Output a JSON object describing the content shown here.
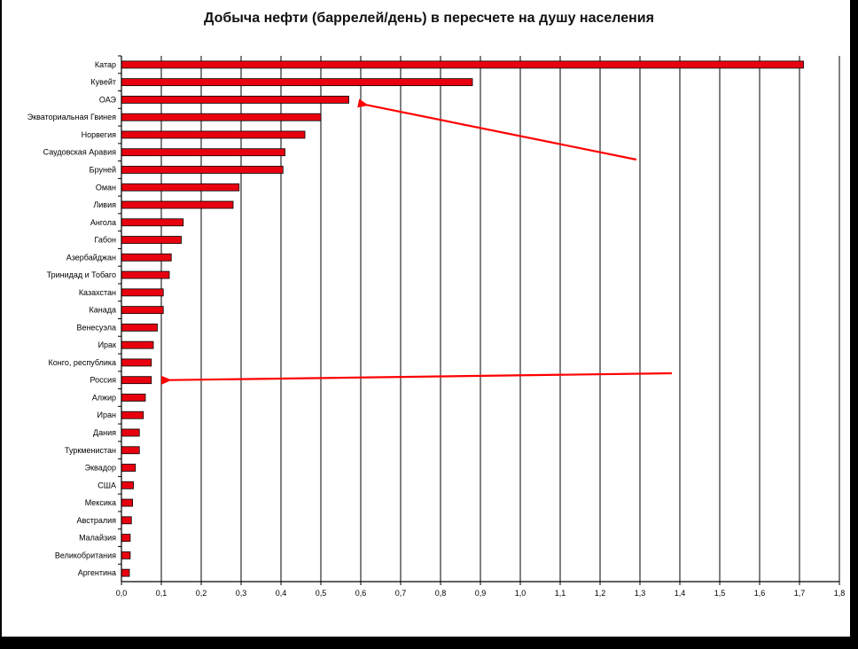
{
  "chart_data": {
    "type": "bar",
    "orientation": "horizontal",
    "title": "Добыча нефти (баррелей/день) в пересчете на душу населения",
    "xlim": [
      0,
      1.8
    ],
    "grid": true,
    "categories": [
      "Катар",
      "Кувейт",
      "ОАЭ",
      "Экваториальная Гвинея",
      "Норвегия",
      "Саудовская Аравия",
      "Бруней",
      "Оман",
      "Ливия",
      "Ангола",
      "Габон",
      "Азербайджан",
      "Тринидад и Тобаго",
      "Казахстан",
      "Канада",
      "Венесуэла",
      "Ирак",
      "Конго, республика",
      "Россия",
      "Алжир",
      "Иран",
      "Дания",
      "Туркменистан",
      "Эквадор",
      "США",
      "Мексика",
      "Австралия",
      "Малайзия",
      "Великобритания",
      "Аргентина"
    ],
    "values": [
      1.71,
      0.88,
      0.57,
      0.5,
      0.46,
      0.41,
      0.405,
      0.295,
      0.28,
      0.155,
      0.15,
      0.125,
      0.12,
      0.105,
      0.105,
      0.09,
      0.08,
      0.075,
      0.075,
      0.06,
      0.055,
      0.045,
      0.045,
      0.035,
      0.03,
      0.028,
      0.025,
      0.022,
      0.022,
      0.02
    ],
    "tick_labels": [
      "0,0",
      "0,1",
      "0,2",
      "0,3",
      "0,4",
      "0,5",
      "0,6",
      "0,7",
      "0,8",
      "0,9",
      "1,0",
      "1,1",
      "1,2",
      "1,3",
      "1,4",
      "1,5",
      "1,6",
      "1,7",
      "1,8"
    ],
    "tick_values": [
      0,
      0.1,
      0.2,
      0.3,
      0.4,
      0.5,
      0.6,
      0.7,
      0.8,
      0.9,
      1.0,
      1.1,
      1.2,
      1.3,
      1.4,
      1.5,
      1.6,
      1.7,
      1.8
    ],
    "bar_color": "#e8000f",
    "annotations": [
      {
        "type": "arrow",
        "points_to": "ОАЭ",
        "color": "#ff0000"
      },
      {
        "type": "arrow",
        "points_to": "Россия",
        "color": "#ff0000"
      }
    ]
  }
}
